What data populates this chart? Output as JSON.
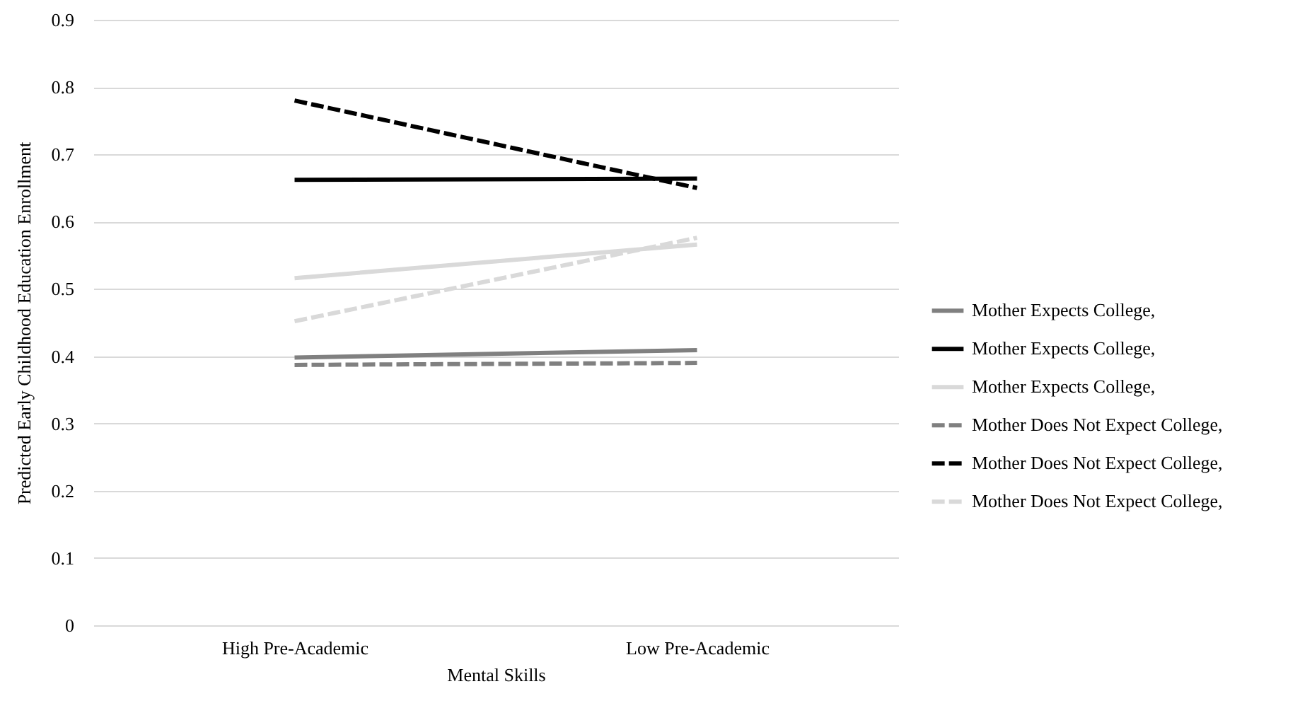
{
  "chart_data": {
    "type": "line",
    "xlabel": "Mental Skills",
    "ylabel": "Predicted Early Childhood Education Enrollment",
    "categories": [
      "High Pre-Academic",
      "Low Pre-Academic"
    ],
    "series": [
      {
        "name": "Mother Expects College,",
        "color": "#808080",
        "line_style": "solid",
        "values": [
          0.398,
          0.409
        ]
      },
      {
        "name": "Mother Expects College,",
        "color": "#000000",
        "line_style": "solid",
        "values": [
          0.662,
          0.664
        ]
      },
      {
        "name": "Mother Expects College,",
        "color": "#d9d9d9",
        "line_style": "solid",
        "values": [
          0.516,
          0.566
        ]
      },
      {
        "name": "Mother Does Not Expect College,",
        "color": "#808080",
        "line_style": "dashed",
        "values": [
          0.387,
          0.39
        ]
      },
      {
        "name": "Mother Does Not Expect College,",
        "color": "#000000",
        "line_style": "dashed",
        "values": [
          0.78,
          0.65
        ]
      },
      {
        "name": "Mother Does Not Expect College,",
        "color": "#d9d9d9",
        "line_style": "dashed",
        "values": [
          0.452,
          0.576
        ]
      }
    ],
    "ylim": [
      0,
      0.9
    ],
    "yticks": [
      0,
      0.1,
      0.2,
      0.3,
      0.4,
      0.5,
      0.6,
      0.7,
      0.8,
      0.9
    ],
    "grid": "y",
    "legend": "right"
  }
}
